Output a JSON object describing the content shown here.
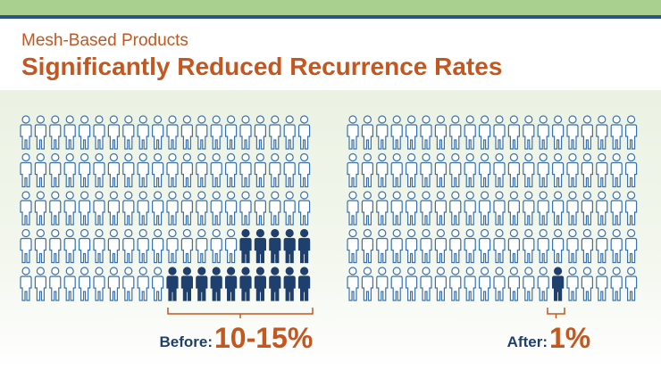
{
  "header": {
    "subtitle": "Mesh-Based Products",
    "title": "Significantly Reduced Recurrence Rates"
  },
  "panels": [
    {
      "label": "Before:",
      "value": "10-15%"
    },
    {
      "label": "After:",
      "value": "1%"
    }
  ]
}
